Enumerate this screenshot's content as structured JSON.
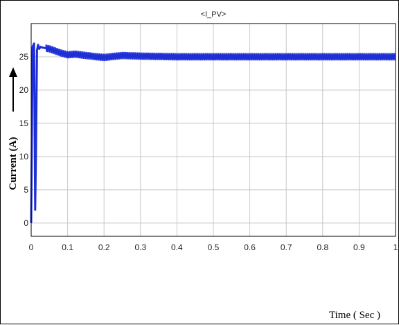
{
  "chart_data": {
    "type": "line",
    "title": "<I_PV>",
    "xlabel": "Time ( Sec )",
    "ylabel": "Current (A)",
    "xlim": [
      0,
      1
    ],
    "ylim": [
      -2,
      30
    ],
    "x_ticks": [
      0,
      0.1,
      0.2,
      0.3,
      0.4,
      0.5,
      0.6,
      0.7,
      0.8,
      0.9,
      1
    ],
    "x_tick_labels": [
      "0",
      "0.1",
      "0.2",
      "0.3",
      "0.4",
      "0.5",
      "0.6",
      "0.7",
      "0.8",
      "0.9",
      "1"
    ],
    "y_ticks": [
      0,
      5,
      10,
      15,
      20,
      25
    ],
    "y_tick_labels": [
      "0",
      "5",
      "10",
      "15",
      "20",
      "25"
    ],
    "grid": true,
    "series": [
      {
        "color": "#1f2fd6",
        "x": [
          0,
          0.004,
          0.008,
          0.011,
          0.013,
          0.016,
          0.019,
          0.022,
          0.026,
          0.03,
          0.04,
          0.05,
          0.06,
          0.07,
          0.08,
          0.1,
          0.12,
          0.15,
          0.18,
          0.2,
          0.25,
          0.3,
          0.4,
          0.5,
          0.6,
          0.7,
          0.8,
          0.9,
          1
        ],
        "y": [
          0,
          26.5,
          27,
          2,
          10,
          26,
          26.8,
          26.2,
          26.5,
          26.4,
          26.3,
          26.2,
          26.0,
          25.8,
          25.6,
          25.3,
          25.4,
          25.2,
          25.0,
          24.9,
          25.2,
          25.1,
          25.0,
          25.0,
          25.0,
          25.0,
          25.0,
          25.0,
          25.0
        ]
      }
    ],
    "arrow": "upward arrow beside y-axis label"
  },
  "colors": {
    "line": "#1f2fd6",
    "grid": "#c8c8c8",
    "axes": "#000000",
    "frame": "#000000"
  }
}
